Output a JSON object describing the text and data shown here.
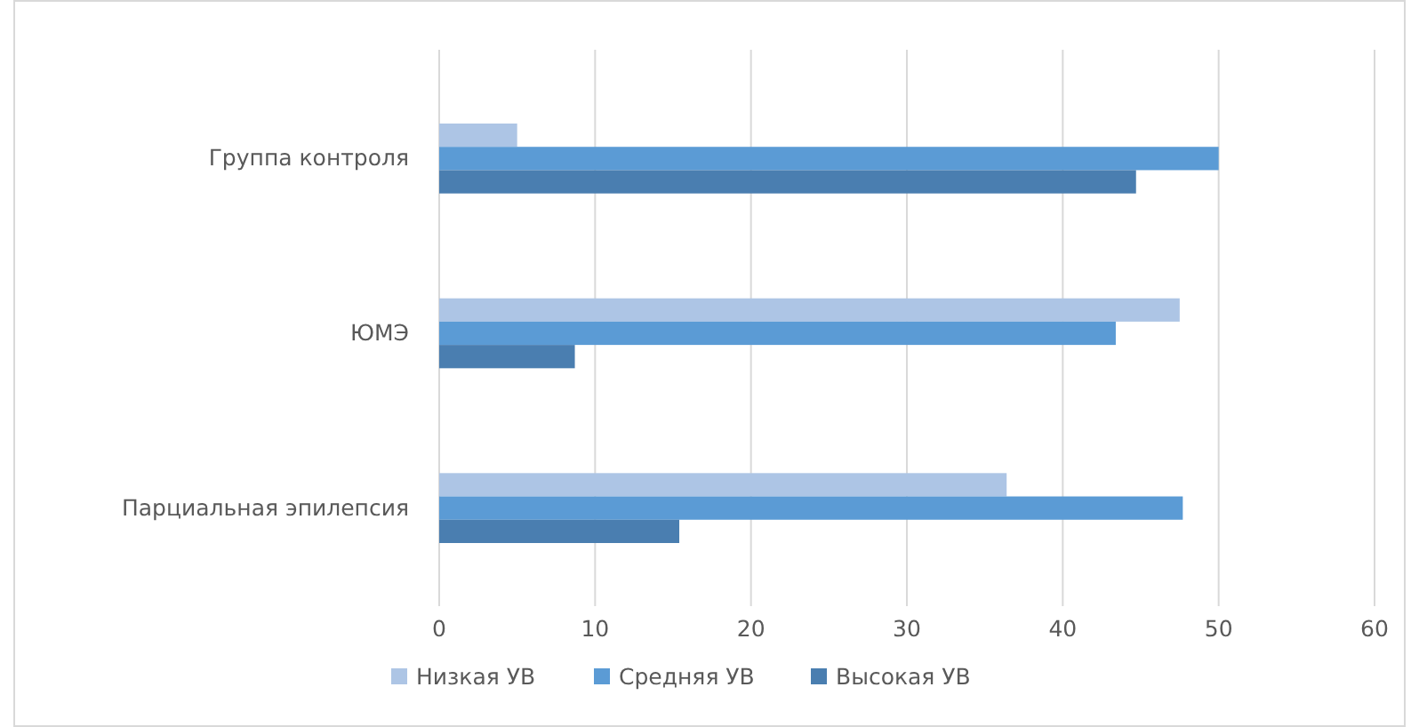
{
  "chart_data": {
    "type": "bar",
    "orientation": "horizontal",
    "categories": [
      "Группа контроля",
      "ЮМЭ",
      "Парциальная эпилепсия"
    ],
    "series": [
      {
        "name": "Низкая УВ",
        "color": "#adc5e5",
        "values": [
          5,
          47.5,
          36.4
        ]
      },
      {
        "name": "Средняя УВ",
        "color": "#5b9bd5",
        "values": [
          50,
          43.4,
          47.7
        ]
      },
      {
        "name": "Высокая УВ",
        "color": "#4a7eb0",
        "values": [
          44.7,
          8.7,
          15.4
        ]
      }
    ],
    "xlim": [
      0,
      60
    ],
    "xticks": [
      0,
      10,
      20,
      30,
      40,
      50,
      60
    ],
    "grid": "x",
    "legend": "bottom"
  }
}
